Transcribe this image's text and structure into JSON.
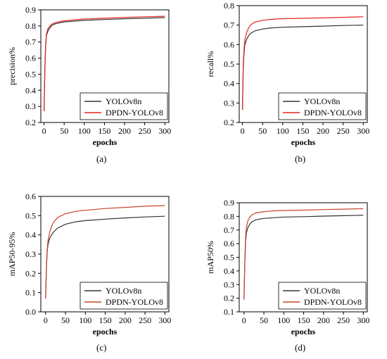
{
  "chart_data": [
    {
      "type": "line",
      "caption": "(a)",
      "xlabel": "epochs",
      "ylabel": "precision%",
      "xlim": [
        -8,
        310
      ],
      "ylim": [
        0.2,
        0.9
      ],
      "xticks": [
        0,
        50,
        100,
        150,
        200,
        250,
        300
      ],
      "yticks": [
        0.2,
        0.3,
        0.4,
        0.5,
        0.6,
        0.7,
        0.8,
        0.9
      ],
      "xtick_labels": [
        "0",
        "50",
        "100",
        "150",
        "200",
        "250",
        "300"
      ],
      "ytick_labels": [
        "0.2",
        "0.3",
        "0.4",
        "0.5",
        "0.6",
        "0.7",
        "0.8",
        "0.9"
      ],
      "legend_position": "bottom-right",
      "series": [
        {
          "name": "YOLOv8n",
          "color": "#333333",
          "points": [
            [
              0,
              0.27
            ],
            [
              2,
              0.52
            ],
            [
              4,
              0.68
            ],
            [
              6,
              0.74
            ],
            [
              10,
              0.77
            ],
            [
              15,
              0.79
            ],
            [
              20,
              0.805
            ],
            [
              30,
              0.815
            ],
            [
              50,
              0.825
            ],
            [
              75,
              0.83
            ],
            [
              100,
              0.835
            ],
            [
              150,
              0.84
            ],
            [
              200,
              0.845
            ],
            [
              250,
              0.848
            ],
            [
              300,
              0.852
            ]
          ]
        },
        {
          "name": "DPDN-YOLOv8",
          "color": "#e8231f",
          "points": [
            [
              0,
              0.27
            ],
            [
              2,
              0.53
            ],
            [
              4,
              0.69
            ],
            [
              6,
              0.75
            ],
            [
              10,
              0.785
            ],
            [
              15,
              0.8
            ],
            [
              20,
              0.812
            ],
            [
              30,
              0.822
            ],
            [
              50,
              0.832
            ],
            [
              75,
              0.838
            ],
            [
              100,
              0.843
            ],
            [
              150,
              0.848
            ],
            [
              200,
              0.853
            ],
            [
              250,
              0.857
            ],
            [
              300,
              0.86
            ]
          ]
        }
      ]
    },
    {
      "type": "line",
      "caption": "(b)",
      "xlabel": "epochs",
      "ylabel": "recall%",
      "xlim": [
        -8,
        310
      ],
      "ylim": [
        0.2,
        0.8
      ],
      "xticks": [
        0,
        50,
        100,
        150,
        200,
        250,
        300
      ],
      "yticks": [
        0.2,
        0.3,
        0.4,
        0.5,
        0.6,
        0.7,
        0.8
      ],
      "xtick_labels": [
        "0",
        "50",
        "100",
        "150",
        "200",
        "250",
        "300"
      ],
      "ytick_labels": [
        "0.2",
        "0.3",
        "0.4",
        "0.5",
        "0.6",
        "0.7",
        "0.8"
      ],
      "legend_position": "bottom-right",
      "series": [
        {
          "name": "YOLOv8n",
          "color": "#333333",
          "points": [
            [
              0,
              0.265
            ],
            [
              2,
              0.48
            ],
            [
              4,
              0.56
            ],
            [
              6,
              0.6
            ],
            [
              10,
              0.625
            ],
            [
              15,
              0.645
            ],
            [
              20,
              0.657
            ],
            [
              30,
              0.67
            ],
            [
              50,
              0.68
            ],
            [
              75,
              0.686
            ],
            [
              100,
              0.689
            ],
            [
              150,
              0.692
            ],
            [
              200,
              0.695
            ],
            [
              250,
              0.698
            ],
            [
              300,
              0.7
            ]
          ]
        },
        {
          "name": "DPDN-YOLOv8",
          "color": "#e8231f",
          "points": [
            [
              0,
              0.265
            ],
            [
              2,
              0.5
            ],
            [
              4,
              0.58
            ],
            [
              6,
              0.625
            ],
            [
              10,
              0.66
            ],
            [
              15,
              0.685
            ],
            [
              20,
              0.7
            ],
            [
              30,
              0.715
            ],
            [
              50,
              0.725
            ],
            [
              75,
              0.73
            ],
            [
              100,
              0.733
            ],
            [
              150,
              0.735
            ],
            [
              200,
              0.737
            ],
            [
              250,
              0.74
            ],
            [
              300,
              0.743
            ]
          ]
        }
      ]
    },
    {
      "type": "line",
      "caption": "(c)",
      "xlabel": "epochs",
      "ylabel": "mAP50-95%",
      "xlim": [
        -12,
        310
      ],
      "ylim": [
        0.0,
        0.6
      ],
      "xticks": [
        0,
        50,
        100,
        150,
        200,
        250,
        300
      ],
      "yticks": [
        0.0,
        0.1,
        0.2,
        0.3,
        0.4,
        0.5,
        0.6
      ],
      "xtick_labels": [
        "0",
        "50",
        "100",
        "150",
        "200",
        "250",
        "300"
      ],
      "ytick_labels": [
        "0.0",
        "0.1",
        "0.2",
        "0.3",
        "0.4",
        "0.5",
        "0.6"
      ],
      "legend_position": "bottom-right",
      "series": [
        {
          "name": "YOLOv8n",
          "color": "#333333",
          "points": [
            [
              0,
              0.07
            ],
            [
              2,
              0.22
            ],
            [
              4,
              0.31
            ],
            [
              6,
              0.35
            ],
            [
              10,
              0.38
            ],
            [
              15,
              0.4
            ],
            [
              20,
              0.415
            ],
            [
              30,
              0.435
            ],
            [
              50,
              0.455
            ],
            [
              75,
              0.468
            ],
            [
              100,
              0.474
            ],
            [
              150,
              0.482
            ],
            [
              200,
              0.488
            ],
            [
              250,
              0.493
            ],
            [
              300,
              0.497
            ]
          ]
        },
        {
          "name": "DPDN-YOLOv8",
          "color": "#c8452c",
          "points": [
            [
              0,
              0.07
            ],
            [
              2,
              0.23
            ],
            [
              4,
              0.32
            ],
            [
              6,
              0.37
            ],
            [
              10,
              0.41
            ],
            [
              15,
              0.445
            ],
            [
              20,
              0.465
            ],
            [
              30,
              0.49
            ],
            [
              50,
              0.51
            ],
            [
              75,
              0.522
            ],
            [
              100,
              0.528
            ],
            [
              150,
              0.537
            ],
            [
              200,
              0.543
            ],
            [
              250,
              0.549
            ],
            [
              300,
              0.552
            ]
          ]
        }
      ]
    },
    {
      "type": "line",
      "caption": "(d)",
      "xlabel": "epochs",
      "ylabel": "mAP50%",
      "xlim": [
        -12,
        310
      ],
      "ylim": [
        0.1,
        0.9
      ],
      "xticks": [
        0,
        50,
        100,
        150,
        200,
        250,
        300
      ],
      "yticks": [
        0.1,
        0.2,
        0.3,
        0.4,
        0.5,
        0.6,
        0.7,
        0.8,
        0.9
      ],
      "xtick_labels": [
        "0",
        "50",
        "100",
        "150",
        "200",
        "250",
        "300"
      ],
      "ytick_labels": [
        "0.1",
        "0.2",
        "0.3",
        "0.4",
        "0.5",
        "0.6",
        "0.7",
        "0.8",
        "0.9"
      ],
      "legend_position": "bottom-right",
      "series": [
        {
          "name": "YOLOv8n",
          "color": "#333333",
          "points": [
            [
              0,
              0.19
            ],
            [
              2,
              0.45
            ],
            [
              4,
              0.62
            ],
            [
              6,
              0.68
            ],
            [
              10,
              0.72
            ],
            [
              15,
              0.745
            ],
            [
              20,
              0.76
            ],
            [
              30,
              0.775
            ],
            [
              50,
              0.785
            ],
            [
              75,
              0.79
            ],
            [
              100,
              0.795
            ],
            [
              150,
              0.798
            ],
            [
              200,
              0.802
            ],
            [
              250,
              0.805
            ],
            [
              300,
              0.808
            ]
          ]
        },
        {
          "name": "DPDN-YOLOv8",
          "color": "#c8452c",
          "points": [
            [
              0,
              0.19
            ],
            [
              2,
              0.47
            ],
            [
              4,
              0.65
            ],
            [
              6,
              0.72
            ],
            [
              10,
              0.77
            ],
            [
              15,
              0.795
            ],
            [
              20,
              0.81
            ],
            [
              30,
              0.825
            ],
            [
              50,
              0.835
            ],
            [
              75,
              0.84
            ],
            [
              100,
              0.843
            ],
            [
              150,
              0.846
            ],
            [
              200,
              0.85
            ],
            [
              250,
              0.853
            ],
            [
              300,
              0.856
            ]
          ]
        }
      ]
    }
  ]
}
